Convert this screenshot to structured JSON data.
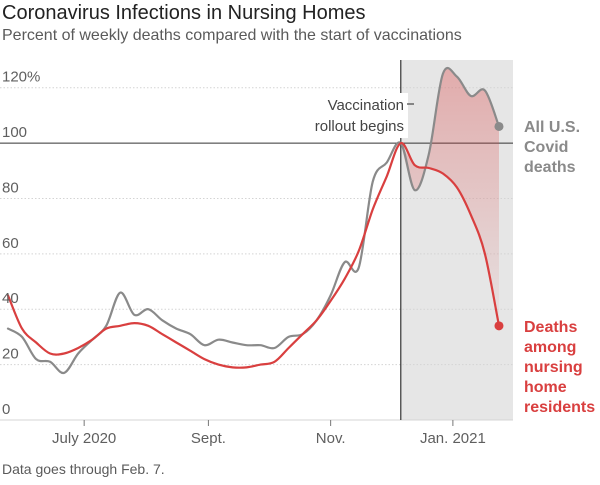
{
  "header": {
    "title": "Coronavirus Infections in Nursing Homes",
    "subtitle": "Percent of weekly deaths compared with the start of vaccinations"
  },
  "footnote": "Data goes through Feb. 7.",
  "chart_data": {
    "type": "line",
    "title": "Coronavirus Infections in Nursing Homes",
    "subtitle": "Percent of weekly deaths compared with the start of vaccinations",
    "xlabel": "",
    "ylabel": "",
    "ylim": [
      0,
      130
    ],
    "xlim": [
      "2020-06-03",
      "2021-02-14"
    ],
    "grid": true,
    "x_ticks": [
      {
        "date": "2020-07-15",
        "label": "July 2020"
      },
      {
        "date": "2020-09-15",
        "label": "Sept."
      },
      {
        "date": "2020-11-15",
        "label": "Nov."
      },
      {
        "date": "2021-01-15",
        "label": "Jan. 2021"
      }
    ],
    "y_ticks": [
      {
        "value": 0,
        "label": "0"
      },
      {
        "value": 20,
        "label": "20"
      },
      {
        "value": 40,
        "label": "40"
      },
      {
        "value": 60,
        "label": "60"
      },
      {
        "value": 80,
        "label": "80"
      },
      {
        "value": 100,
        "label": "100"
      },
      {
        "value": 120,
        "label": "120%"
      }
    ],
    "annotation": {
      "date": "2020-12-20",
      "lines": [
        "Vaccination",
        "rollout begins"
      ]
    },
    "shaded_period": {
      "start": "2020-12-20",
      "end": "2021-02-14"
    },
    "series": [
      {
        "name": "All U.S. Covid deaths",
        "label_lines": [
          "All U.S.",
          "Covid",
          "deaths"
        ],
        "color": "#8a8a8a",
        "x": [
          "2020-06-07",
          "2020-06-14",
          "2020-06-21",
          "2020-06-28",
          "2020-07-05",
          "2020-07-12",
          "2020-07-19",
          "2020-07-26",
          "2020-08-02",
          "2020-08-09",
          "2020-08-16",
          "2020-08-23",
          "2020-08-30",
          "2020-09-06",
          "2020-09-13",
          "2020-09-20",
          "2020-09-27",
          "2020-10-04",
          "2020-10-11",
          "2020-10-18",
          "2020-10-25",
          "2020-11-01",
          "2020-11-08",
          "2020-11-15",
          "2020-11-22",
          "2020-11-29",
          "2020-12-06",
          "2020-12-13",
          "2020-12-20",
          "2020-12-27",
          "2021-01-03",
          "2021-01-10",
          "2021-01-17",
          "2021-01-24",
          "2021-01-31",
          "2021-02-07"
        ],
        "values": [
          33,
          30,
          22,
          21,
          17,
          24,
          29,
          34,
          46,
          38,
          40,
          36,
          33,
          31,
          27,
          29,
          28,
          27,
          27,
          26,
          30,
          31,
          36,
          45,
          57,
          55,
          86,
          93,
          100,
          83,
          96,
          125,
          124,
          117,
          119,
          106
        ]
      },
      {
        "name": "Deaths among nursing home residents",
        "label_lines": [
          "Deaths",
          "among",
          "nursing",
          "home",
          "residents"
        ],
        "color": "#d93f3f",
        "x": [
          "2020-06-07",
          "2020-06-14",
          "2020-06-21",
          "2020-06-28",
          "2020-07-05",
          "2020-07-12",
          "2020-07-19",
          "2020-07-26",
          "2020-08-02",
          "2020-08-09",
          "2020-08-16",
          "2020-08-23",
          "2020-08-30",
          "2020-09-06",
          "2020-09-13",
          "2020-09-20",
          "2020-09-27",
          "2020-10-04",
          "2020-10-11",
          "2020-10-18",
          "2020-10-25",
          "2020-11-01",
          "2020-11-08",
          "2020-11-15",
          "2020-11-22",
          "2020-11-29",
          "2020-12-06",
          "2020-12-13",
          "2020-12-20",
          "2020-12-27",
          "2021-01-03",
          "2021-01-10",
          "2021-01-17",
          "2021-01-24",
          "2021-01-31",
          "2021-02-07"
        ],
        "values": [
          45,
          33,
          28,
          24,
          24,
          26,
          29,
          33,
          34,
          35,
          34,
          31,
          28,
          25,
          22,
          20,
          19,
          19,
          20,
          21,
          26,
          31,
          36,
          43,
          51,
          61,
          76,
          88,
          100,
          92,
          91,
          89,
          84,
          74,
          60,
          34
        ]
      }
    ]
  }
}
